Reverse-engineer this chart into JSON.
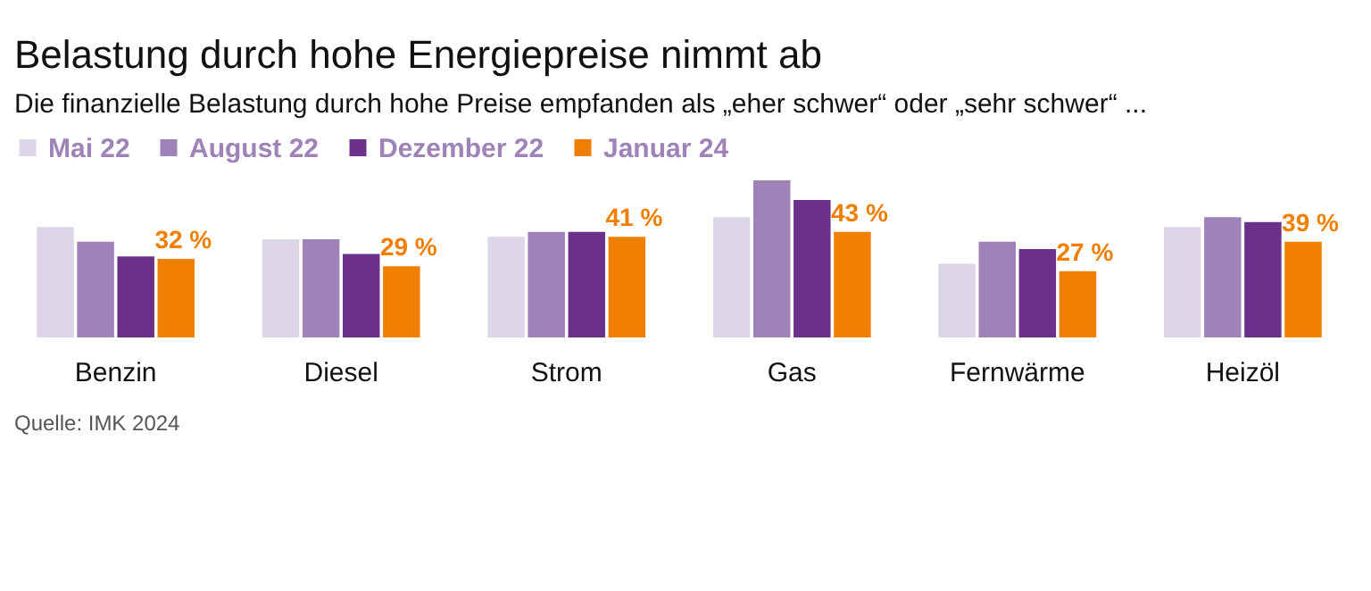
{
  "chart_data": {
    "type": "bar",
    "title": "Belastung durch hohe Energiepreise nimmt ab",
    "subtitle": "Die finanzielle Belastung durch hohe Preise empfanden als „eher schwer“ oder „sehr schwer“ ...",
    "categories": [
      "Benzin",
      "Diesel",
      "Strom",
      "Gas",
      "Fernwärme",
      "Heizöl"
    ],
    "series": [
      {
        "name": "Mai 22",
        "color": "#ddd5e8",
        "values": [
          45,
          40,
          41,
          49,
          30,
          45
        ]
      },
      {
        "name": "August 22",
        "color": "#9e82b8",
        "values": [
          39,
          40,
          43,
          64,
          39,
          49
        ]
      },
      {
        "name": "Dezember 22",
        "color": "#6b318a",
        "values": [
          33,
          34,
          43,
          56,
          36,
          47
        ]
      },
      {
        "name": "Januar 24",
        "color": "#f07f00",
        "values": [
          32,
          29,
          41,
          43,
          27,
          39
        ],
        "value_labels": [
          "32 %",
          "29 %",
          "41 %",
          "43 %",
          "27 %",
          "39 %"
        ]
      }
    ],
    "legend": "top left",
    "annotations": [
      "Quelle: IMK 2024"
    ]
  }
}
